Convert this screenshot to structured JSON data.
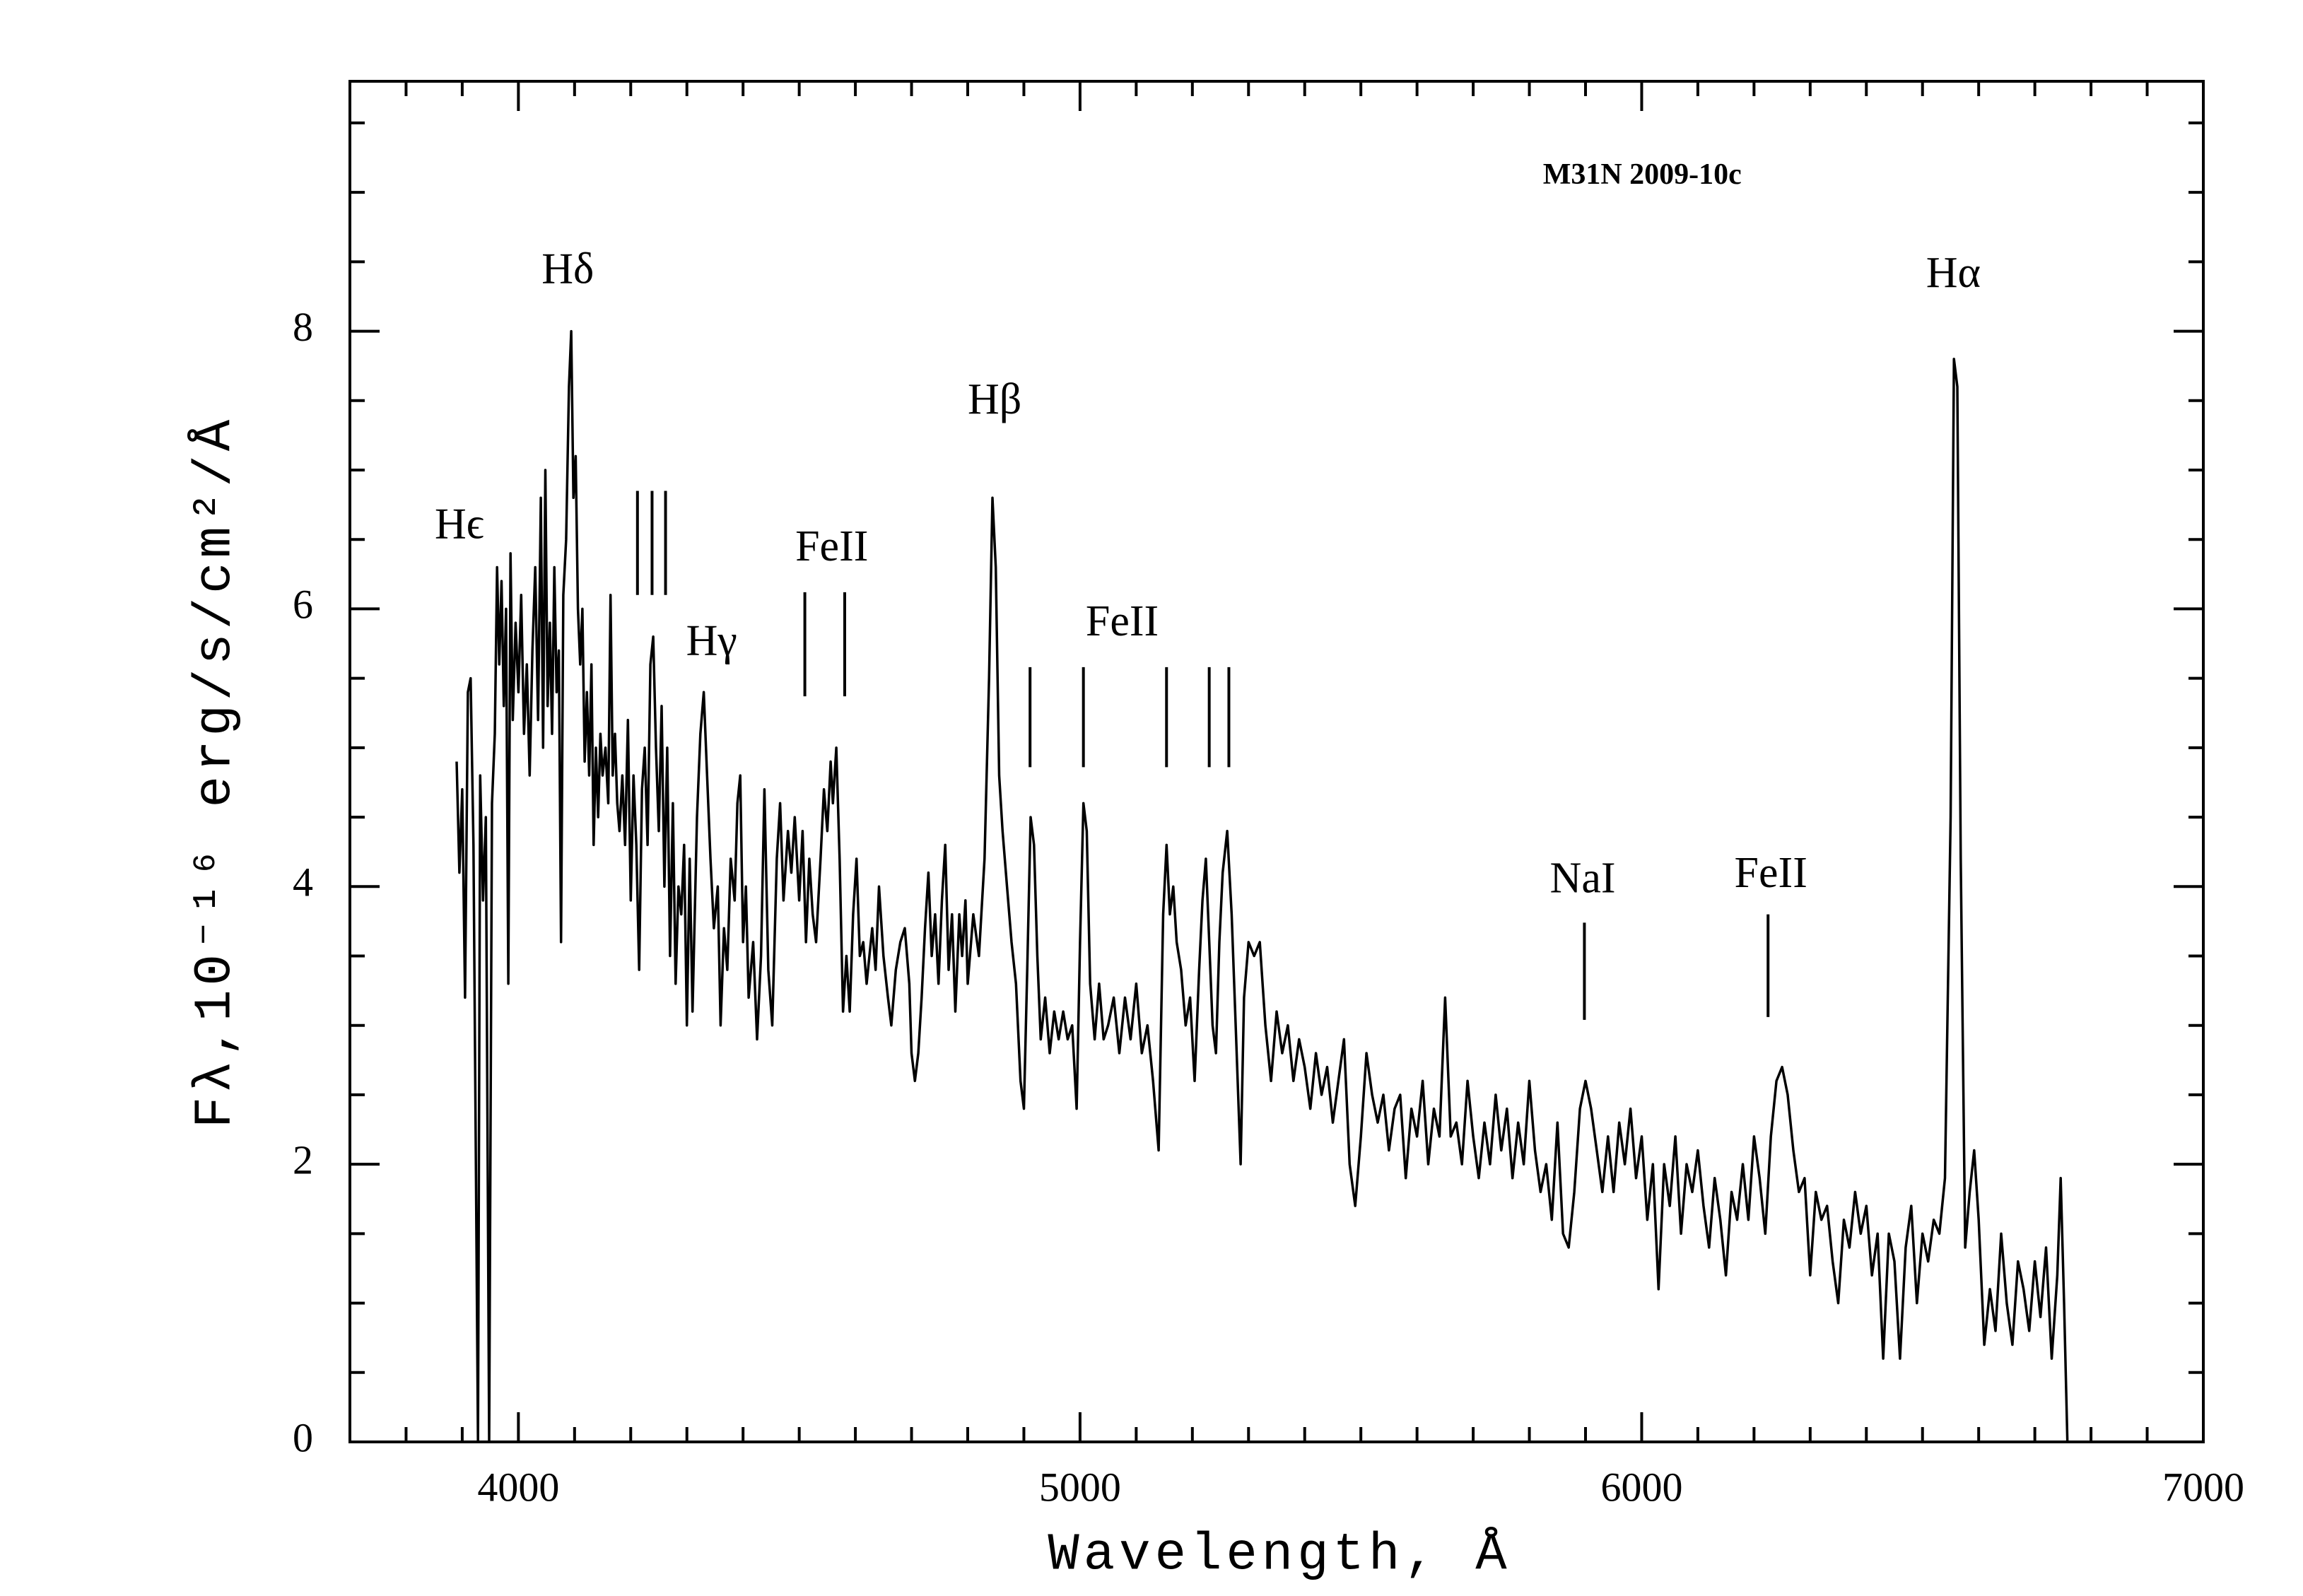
{
  "chart_data": {
    "type": "line",
    "title": "M31N 2009-10c",
    "x_label": "Wavelength, Å",
    "y_label": "Fλ,10⁻¹⁶ erg/s/cm²/Å",
    "annotations": [
      "Hϵ",
      "Hδ",
      "Hγ",
      "FeII",
      "Hβ",
      "FeII",
      "NaI",
      "FeII",
      "Hα"
    ],
    "color": "#000000",
    "xlim": [
      3700,
      7000
    ],
    "ylim": [
      0,
      9.8
    ],
    "xticks": [
      4000,
      5000,
      6000,
      7000
    ],
    "yticks": [
      0,
      2,
      4,
      6,
      8
    ],
    "x_minor_ticks": [
      3800,
      3900,
      4100,
      4200,
      4300,
      4400,
      4500,
      4600,
      4700,
      4800,
      4900,
      5100,
      5200,
      5300,
      5400,
      5500,
      5600,
      5700,
      5800,
      5900,
      6100,
      6200,
      6300,
      6400,
      6500,
      6600,
      6700,
      6800,
      6900
    ],
    "y_minor_ticks": [
      0.5,
      1,
      1.5,
      2.5,
      3,
      3.5,
      4.5,
      5,
      5.5,
      6.5,
      7,
      7.5,
      8.5,
      9,
      9.5
    ],
    "x": [
      3890,
      3895,
      3900,
      3905,
      3910,
      3915,
      3920,
      3928,
      3932,
      3937,
      3942,
      3948,
      3953,
      3958,
      3962,
      3966,
      3970,
      3974,
      3978,
      3982,
      3986,
      3990,
      3995,
      4000,
      4005,
      4010,
      4015,
      4020,
      4025,
      4030,
      4035,
      4040,
      4044,
      4048,
      4052,
      4056,
      4060,
      4064,
      4068,
      4072,
      4076,
      4080,
      4085,
      4090,
      4094,
      4098,
      4102,
      4106,
      4110,
      4114,
      4118,
      4122,
      4126,
      4130,
      4134,
      4138,
      4142,
      4146,
      4150,
      4155,
      4160,
      4164,
      4168,
      4172,
      4176,
      4180,
      4185,
      4190,
      4195,
      4200,
      4205,
      4210,
      4215,
      4220,
      4225,
      4230,
      4235,
      4240,
      4245,
      4250,
      4255,
      4260,
      4265,
      4270,
      4275,
      4280,
      4285,
      4290,
      4295,
      4300,
      4305,
      4310,
      4318,
      4324,
      4330,
      4336,
      4342,
      4348,
      4355,
      4360,
      4366,
      4372,
      4378,
      4385,
      4390,
      4395,
      4400,
      4405,
      4410,
      4418,
      4425,
      4432,
      4438,
      4445,
      4452,
      4460,
      4466,
      4472,
      4480,
      4486,
      4492,
      4500,
      4506,
      4512,
      4518,
      4524,
      4530,
      4538,
      4544,
      4550,
      4556,
      4560,
      4566,
      4572,
      4578,
      4584,
      4590,
      4596,
      4602,
      4608,
      4614,
      4620,
      4630,
      4636,
      4642,
      4650,
      4658,
      4664,
      4672,
      4680,
      4688,
      4696,
      4700,
      4706,
      4712,
      4718,
      4724,
      4730,
      4736,
      4742,
      4748,
      4754,
      4760,
      4766,
      4772,
      4778,
      4785,
      4790,
      4796,
      4800,
      4810,
      4820,
      4830,
      4838,
      4844,
      4850,
      4856,
      4862,
      4870,
      4878,
      4886,
      4894,
      4900,
      4906,
      4912,
      4918,
      4924,
      4930,
      4938,
      4946,
      4954,
      4962,
      4970,
      4978,
      4986,
      4994,
      5000,
      5006,
      5012,
      5018,
      5026,
      5034,
      5042,
      5050,
      5060,
      5070,
      5080,
      5090,
      5100,
      5110,
      5120,
      5130,
      5140,
      5148,
      5154,
      5160,
      5166,
      5172,
      5180,
      5188,
      5196,
      5204,
      5212,
      5218,
      5224,
      5230,
      5236,
      5242,
      5248,
      5254,
      5262,
      5270,
      5278,
      5286,
      5292,
      5300,
      5310,
      5320,
      5330,
      5340,
      5350,
      5360,
      5370,
      5380,
      5390,
      5400,
      5410,
      5420,
      5430,
      5440,
      5450,
      5460,
      5470,
      5480,
      5490,
      5500,
      5510,
      5520,
      5530,
      5540,
      5550,
      5560,
      5570,
      5580,
      5590,
      5600,
      5610,
      5620,
      5630,
      5640,
      5650,
      5660,
      5670,
      5680,
      5690,
      5700,
      5710,
      5720,
      5730,
      5740,
      5750,
      5760,
      5770,
      5780,
      5790,
      5800,
      5810,
      5820,
      5830,
      5840,
      5850,
      5860,
      5870,
      5880,
      5890,
      5900,
      5910,
      5920,
      5930,
      5940,
      5950,
      5960,
      5970,
      5980,
      5990,
      6000,
      6010,
      6020,
      6030,
      6040,
      6050,
      6060,
      6070,
      6080,
      6090,
      6100,
      6110,
      6120,
      6130,
      6140,
      6150,
      6160,
      6170,
      6180,
      6190,
      6200,
      6210,
      6220,
      6230,
      6240,
      6250,
      6260,
      6270,
      6280,
      6290,
      6300,
      6310,
      6320,
      6330,
      6340,
      6350,
      6360,
      6370,
      6380,
      6390,
      6400,
      6410,
      6420,
      6430,
      6440,
      6450,
      6460,
      6470,
      6480,
      6490,
      6500,
      6510,
      6520,
      6530,
      6540,
      6550,
      6556,
      6562,
      6568,
      6576,
      6584,
      6592,
      6600,
      6610,
      6620,
      6630,
      6640,
      6650,
      6660,
      6670,
      6680,
      6690,
      6700,
      6710,
      6720,
      6730,
      6740,
      6746,
      6752,
      6758
    ],
    "values": [
      4.9,
      4.1,
      4.7,
      3.2,
      5.4,
      5.5,
      4.3,
      0,
      4.8,
      3.9,
      4.5,
      0,
      4.6,
      5.1,
      6.3,
      5.6,
      6.2,
      5.3,
      6.0,
      3.3,
      6.4,
      5.2,
      5.9,
      5.4,
      6.1,
      5.1,
      5.6,
      4.8,
      5.7,
      6.3,
      5.2,
      6.8,
      5.0,
      7.0,
      5.3,
      5.9,
      5.1,
      6.3,
      5.4,
      5.7,
      3.6,
      6.1,
      6.5,
      7.6,
      8.0,
      6.8,
      7.1,
      6.0,
      5.6,
      6.0,
      4.9,
      5.4,
      4.8,
      5.6,
      4.3,
      5.0,
      4.5,
      5.1,
      4.8,
      5.0,
      4.6,
      6.1,
      4.8,
      5.1,
      4.6,
      4.4,
      4.8,
      4.3,
      5.2,
      3.9,
      4.8,
      4.3,
      3.4,
      4.7,
      5.0,
      4.3,
      5.6,
      5.8,
      5.0,
      4.4,
      5.3,
      4.0,
      5.0,
      3.5,
      4.6,
      3.3,
      4.0,
      3.8,
      4.3,
      3.0,
      4.2,
      3.1,
      4.5,
      5.1,
      5.4,
      4.8,
      4.2,
      3.7,
      4.0,
      3.0,
      3.7,
      3.4,
      4.2,
      3.9,
      4.6,
      4.8,
      3.6,
      4.0,
      3.2,
      3.6,
      2.9,
      3.5,
      4.7,
      3.4,
      3.0,
      4.2,
      4.6,
      3.9,
      4.4,
      4.1,
      4.5,
      3.9,
      4.4,
      3.6,
      4.2,
      3.8,
      3.6,
      4.2,
      4.7,
      4.4,
      4.9,
      4.6,
      5.0,
      4.2,
      3.1,
      3.5,
      3.1,
      3.8,
      4.2,
      3.5,
      3.6,
      3.3,
      3.7,
      3.4,
      4.0,
      3.5,
      3.2,
      3.0,
      3.4,
      3.6,
      3.7,
      3.3,
      2.8,
      2.6,
      2.8,
      3.2,
      3.7,
      4.1,
      3.5,
      3.8,
      3.3,
      3.9,
      4.3,
      3.4,
      3.8,
      3.1,
      3.8,
      3.5,
      3.9,
      3.3,
      3.8,
      3.5,
      4.2,
      5.5,
      6.8,
      6.3,
      4.8,
      4.4,
      4.0,
      3.6,
      3.3,
      2.6,
      2.4,
      3.4,
      4.5,
      4.3,
      3.5,
      2.9,
      3.2,
      2.8,
      3.1,
      2.9,
      3.1,
      2.9,
      3.0,
      2.4,
      3.6,
      4.6,
      4.4,
      3.3,
      2.9,
      3.3,
      2.9,
      3.0,
      3.2,
      2.8,
      3.2,
      2.9,
      3.3,
      2.8,
      3.0,
      2.6,
      2.1,
      3.8,
      4.3,
      3.8,
      4.0,
      3.6,
      3.4,
      3.0,
      3.2,
      2.6,
      3.4,
      3.9,
      4.2,
      3.6,
      3.0,
      2.8,
      3.6,
      4.1,
      4.4,
      3.8,
      2.9,
      2.0,
      3.2,
      3.6,
      3.5,
      3.6,
      3.0,
      2.6,
      3.1,
      2.8,
      3.0,
      2.6,
      2.9,
      2.7,
      2.4,
      2.8,
      2.5,
      2.7,
      2.3,
      2.6,
      2.9,
      2.0,
      1.7,
      2.2,
      2.8,
      2.5,
      2.3,
      2.5,
      2.1,
      2.4,
      2.5,
      1.9,
      2.4,
      2.2,
      2.6,
      2.0,
      2.4,
      2.2,
      3.2,
      2.2,
      2.3,
      2.0,
      2.6,
      2.2,
      1.9,
      2.3,
      2.0,
      2.5,
      2.1,
      2.4,
      1.9,
      2.3,
      2.0,
      2.6,
      2.1,
      1.8,
      2.0,
      1.6,
      2.3,
      1.5,
      1.4,
      1.8,
      2.4,
      2.6,
      2.4,
      2.1,
      1.8,
      2.2,
      1.8,
      2.3,
      2.0,
      2.4,
      1.9,
      2.2,
      1.6,
      2.0,
      1.1,
      2.0,
      1.7,
      2.2,
      1.5,
      2.0,
      1.8,
      2.1,
      1.7,
      1.4,
      1.9,
      1.6,
      1.2,
      1.8,
      1.6,
      2.0,
      1.6,
      2.2,
      1.9,
      1.5,
      2.2,
      2.6,
      2.7,
      2.5,
      2.1,
      1.8,
      1.9,
      1.2,
      1.8,
      1.6,
      1.7,
      1.3,
      1.0,
      1.6,
      1.4,
      1.8,
      1.5,
      1.7,
      1.2,
      1.5,
      0.6,
      1.5,
      1.3,
      0.6,
      1.4,
      1.7,
      1.0,
      1.5,
      1.3,
      1.6,
      1.5,
      1.9,
      4.5,
      7.8,
      7.6,
      4.2,
      1.4,
      1.8,
      2.1,
      1.6,
      0.7,
      1.1,
      0.8,
      1.5,
      1.0,
      0.7,
      1.3,
      1.1,
      0.8,
      1.3,
      0.9,
      1.4,
      0.6,
      1.2,
      1.9,
      1.0,
      0
    ]
  }
}
